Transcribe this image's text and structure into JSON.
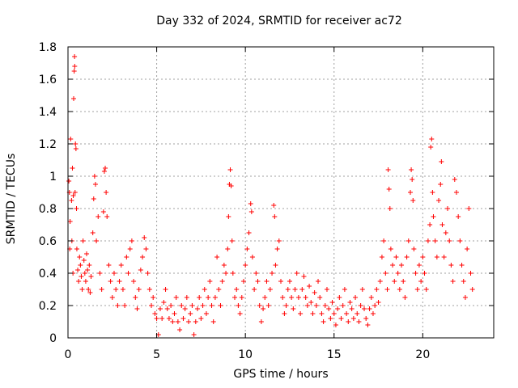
{
  "chart_data": {
    "type": "scatter",
    "title": "Day 332 of 2024, SRMTID for receiver ac72",
    "xlabel": "GPS time / hours",
    "ylabel": "SRMTID / TECUs",
    "xlim": [
      0,
      24
    ],
    "ylim": [
      0,
      1.8
    ],
    "xticks": [
      0,
      5,
      10,
      15,
      20
    ],
    "xtick_labels": [
      "0",
      "5",
      "10",
      "15",
      "20"
    ],
    "yticks": [
      0,
      0.2,
      0.4,
      0.6,
      0.8,
      1.0,
      1.2,
      1.4,
      1.6,
      1.8
    ],
    "ytick_labels": [
      "0",
      "0.2",
      "0.4",
      "0.6",
      "0.8",
      "1",
      "1.2",
      "1.4",
      "1.6",
      "1.8"
    ],
    "grid": true,
    "marker": "plus",
    "color": "#ff0000",
    "series": [
      {
        "name": "SRMTID",
        "points": [
          [
            0.05,
            0.97
          ],
          [
            0.08,
            0.9
          ],
          [
            0.1,
            0.55
          ],
          [
            0.12,
            0.72
          ],
          [
            0.15,
            1.23
          ],
          [
            0.2,
            0.85
          ],
          [
            0.22,
            0.6
          ],
          [
            0.25,
            1.05
          ],
          [
            0.28,
            0.4
          ],
          [
            0.3,
            0.88
          ],
          [
            0.32,
            1.48
          ],
          [
            0.35,
            1.65
          ],
          [
            0.37,
            1.74
          ],
          [
            0.38,
            1.68
          ],
          [
            0.4,
            0.9
          ],
          [
            0.42,
            1.2
          ],
          [
            0.45,
            1.17
          ],
          [
            0.48,
            0.8
          ],
          [
            0.5,
            0.55
          ],
          [
            0.55,
            0.42
          ],
          [
            0.6,
            0.35
          ],
          [
            0.65,
            0.5
          ],
          [
            0.7,
            0.45
          ],
          [
            0.75,
            0.38
          ],
          [
            0.8,
            0.3
          ],
          [
            0.85,
            0.6
          ],
          [
            0.9,
            0.48
          ],
          [
            0.95,
            0.4
          ],
          [
            1.0,
            0.35
          ],
          [
            1.05,
            0.52
          ],
          [
            1.1,
            0.42
          ],
          [
            1.15,
            0.3
          ],
          [
            1.2,
            0.45
          ],
          [
            1.25,
            0.28
          ],
          [
            1.3,
            0.38
          ],
          [
            1.4,
            0.65
          ],
          [
            1.45,
            0.86
          ],
          [
            1.5,
            1.0
          ],
          [
            1.55,
            0.95
          ],
          [
            1.6,
            0.6
          ],
          [
            1.7,
            0.75
          ],
          [
            1.8,
            0.4
          ],
          [
            1.9,
            0.3
          ],
          [
            2.0,
            0.78
          ],
          [
            2.05,
            1.03
          ],
          [
            2.1,
            1.05
          ],
          [
            2.15,
            0.9
          ],
          [
            2.2,
            0.75
          ],
          [
            2.3,
            0.45
          ],
          [
            2.4,
            0.35
          ],
          [
            2.5,
            0.25
          ],
          [
            2.6,
            0.4
          ],
          [
            2.7,
            0.3
          ],
          [
            2.8,
            0.2
          ],
          [
            2.9,
            0.35
          ],
          [
            3.0,
            0.45
          ],
          [
            3.1,
            0.3
          ],
          [
            3.2,
            0.2
          ],
          [
            3.3,
            0.5
          ],
          [
            3.4,
            0.4
          ],
          [
            3.5,
            0.55
          ],
          [
            3.6,
            0.6
          ],
          [
            3.7,
            0.35
          ],
          [
            3.8,
            0.25
          ],
          [
            3.9,
            0.18
          ],
          [
            4.0,
            0.3
          ],
          [
            4.1,
            0.42
          ],
          [
            4.2,
            0.5
          ],
          [
            4.3,
            0.62
          ],
          [
            4.4,
            0.55
          ],
          [
            4.5,
            0.4
          ],
          [
            4.6,
            0.3
          ],
          [
            4.7,
            0.2
          ],
          [
            4.8,
            0.25
          ],
          [
            4.9,
            0.15
          ],
          [
            5.0,
            0.12
          ],
          [
            5.1,
            0.02
          ],
          [
            5.2,
            0.18
          ],
          [
            5.3,
            0.12
          ],
          [
            5.4,
            0.22
          ],
          [
            5.5,
            0.3
          ],
          [
            5.6,
            0.18
          ],
          [
            5.7,
            0.12
          ],
          [
            5.8,
            0.2
          ],
          [
            5.9,
            0.1
          ],
          [
            6.0,
            0.15
          ],
          [
            6.1,
            0.25
          ],
          [
            6.2,
            0.1
          ],
          [
            6.3,
            0.05
          ],
          [
            6.4,
            0.2
          ],
          [
            6.5,
            0.12
          ],
          [
            6.6,
            0.18
          ],
          [
            6.7,
            0.25
          ],
          [
            6.8,
            0.1
          ],
          [
            6.9,
            0.15
          ],
          [
            7.0,
            0.2
          ],
          [
            7.1,
            0.02
          ],
          [
            7.2,
            0.1
          ],
          [
            7.3,
            0.18
          ],
          [
            7.4,
            0.25
          ],
          [
            7.5,
            0.12
          ],
          [
            7.6,
            0.2
          ],
          [
            7.7,
            0.3
          ],
          [
            7.8,
            0.15
          ],
          [
            7.9,
            0.25
          ],
          [
            8.0,
            0.35
          ],
          [
            8.1,
            0.2
          ],
          [
            8.2,
            0.1
          ],
          [
            8.3,
            0.25
          ],
          [
            8.4,
            0.5
          ],
          [
            8.5,
            0.3
          ],
          [
            8.6,
            0.2
          ],
          [
            8.7,
            0.35
          ],
          [
            8.8,
            0.45
          ],
          [
            8.9,
            0.4
          ],
          [
            9.0,
            0.55
          ],
          [
            9.05,
            0.75
          ],
          [
            9.1,
            0.95
          ],
          [
            9.15,
            1.04
          ],
          [
            9.2,
            0.94
          ],
          [
            9.25,
            0.6
          ],
          [
            9.3,
            0.4
          ],
          [
            9.4,
            0.25
          ],
          [
            9.5,
            0.3
          ],
          [
            9.6,
            0.2
          ],
          [
            9.7,
            0.15
          ],
          [
            9.8,
            0.25
          ],
          [
            9.9,
            0.35
          ],
          [
            10.0,
            0.45
          ],
          [
            10.1,
            0.55
          ],
          [
            10.2,
            0.65
          ],
          [
            10.3,
            0.83
          ],
          [
            10.35,
            0.78
          ],
          [
            10.4,
            0.5
          ],
          [
            10.5,
            0.3
          ],
          [
            10.6,
            0.4
          ],
          [
            10.7,
            0.35
          ],
          [
            10.8,
            0.2
          ],
          [
            10.9,
            0.1
          ],
          [
            11.0,
            0.18
          ],
          [
            11.1,
            0.25
          ],
          [
            11.2,
            0.35
          ],
          [
            11.3,
            0.2
          ],
          [
            11.4,
            0.3
          ],
          [
            11.5,
            0.4
          ],
          [
            11.6,
            0.82
          ],
          [
            11.65,
            0.75
          ],
          [
            11.7,
            0.45
          ],
          [
            11.8,
            0.55
          ],
          [
            11.9,
            0.6
          ],
          [
            12.0,
            0.35
          ],
          [
            12.1,
            0.25
          ],
          [
            12.2,
            0.15
          ],
          [
            12.3,
            0.2
          ],
          [
            12.4,
            0.3
          ],
          [
            12.5,
            0.35
          ],
          [
            12.6,
            0.25
          ],
          [
            12.7,
            0.18
          ],
          [
            12.8,
            0.3
          ],
          [
            12.9,
            0.4
          ],
          [
            13.0,
            0.25
          ],
          [
            13.1,
            0.15
          ],
          [
            13.2,
            0.3
          ],
          [
            13.3,
            0.38
          ],
          [
            13.4,
            0.25
          ],
          [
            13.5,
            0.2
          ],
          [
            13.6,
            0.32
          ],
          [
            13.7,
            0.22
          ],
          [
            13.8,
            0.15
          ],
          [
            13.9,
            0.28
          ],
          [
            14.0,
            0.2
          ],
          [
            14.1,
            0.35
          ],
          [
            14.2,
            0.25
          ],
          [
            14.3,
            0.15
          ],
          [
            14.4,
            0.1
          ],
          [
            14.5,
            0.2
          ],
          [
            14.6,
            0.3
          ],
          [
            14.7,
            0.18
          ],
          [
            14.8,
            0.12
          ],
          [
            14.9,
            0.22
          ],
          [
            15.0,
            0.15
          ],
          [
            15.1,
            0.08
          ],
          [
            15.2,
            0.18
          ],
          [
            15.3,
            0.25
          ],
          [
            15.4,
            0.12
          ],
          [
            15.5,
            0.2
          ],
          [
            15.6,
            0.3
          ],
          [
            15.7,
            0.15
          ],
          [
            15.8,
            0.1
          ],
          [
            15.9,
            0.22
          ],
          [
            16.0,
            0.18
          ],
          [
            16.1,
            0.12
          ],
          [
            16.2,
            0.25
          ],
          [
            16.3,
            0.15
          ],
          [
            16.4,
            0.1
          ],
          [
            16.5,
            0.2
          ],
          [
            16.6,
            0.3
          ],
          [
            16.7,
            0.18
          ],
          [
            16.8,
            0.12
          ],
          [
            16.9,
            0.08
          ],
          [
            17.0,
            0.18
          ],
          [
            17.1,
            0.25
          ],
          [
            17.2,
            0.15
          ],
          [
            17.3,
            0.2
          ],
          [
            17.4,
            0.3
          ],
          [
            17.5,
            0.22
          ],
          [
            17.6,
            0.35
          ],
          [
            17.7,
            0.5
          ],
          [
            17.8,
            0.6
          ],
          [
            17.9,
            0.4
          ],
          [
            18.0,
            0.3
          ],
          [
            18.05,
            1.04
          ],
          [
            18.1,
            0.92
          ],
          [
            18.15,
            0.8
          ],
          [
            18.2,
            0.55
          ],
          [
            18.3,
            0.45
          ],
          [
            18.4,
            0.35
          ],
          [
            18.5,
            0.5
          ],
          [
            18.6,
            0.4
          ],
          [
            18.7,
            0.3
          ],
          [
            18.8,
            0.45
          ],
          [
            18.9,
            0.35
          ],
          [
            19.0,
            0.25
          ],
          [
            19.1,
            0.5
          ],
          [
            19.2,
            0.6
          ],
          [
            19.3,
            0.9
          ],
          [
            19.35,
            1.04
          ],
          [
            19.4,
            0.98
          ],
          [
            19.45,
            0.85
          ],
          [
            19.5,
            0.55
          ],
          [
            19.6,
            0.4
          ],
          [
            19.7,
            0.3
          ],
          [
            19.8,
            0.45
          ],
          [
            19.9,
            0.35
          ],
          [
            20.0,
            0.5
          ],
          [
            20.1,
            0.4
          ],
          [
            20.2,
            0.3
          ],
          [
            20.3,
            0.6
          ],
          [
            20.4,
            0.7
          ],
          [
            20.45,
            1.18
          ],
          [
            20.5,
            1.23
          ],
          [
            20.55,
            0.9
          ],
          [
            20.6,
            0.75
          ],
          [
            20.7,
            0.6
          ],
          [
            20.8,
            0.5
          ],
          [
            20.9,
            0.85
          ],
          [
            21.0,
            0.95
          ],
          [
            21.05,
            1.09
          ],
          [
            21.1,
            0.7
          ],
          [
            21.2,
            0.5
          ],
          [
            21.3,
            0.65
          ],
          [
            21.4,
            0.8
          ],
          [
            21.5,
            0.6
          ],
          [
            21.6,
            0.45
          ],
          [
            21.7,
            0.35
          ],
          [
            21.8,
            0.98
          ],
          [
            21.9,
            0.9
          ],
          [
            22.0,
            0.75
          ],
          [
            22.1,
            0.6
          ],
          [
            22.2,
            0.45
          ],
          [
            22.3,
            0.35
          ],
          [
            22.4,
            0.25
          ],
          [
            22.5,
            0.55
          ],
          [
            22.6,
            0.8
          ],
          [
            22.7,
            0.4
          ],
          [
            22.8,
            0.3
          ]
        ]
      }
    ]
  }
}
